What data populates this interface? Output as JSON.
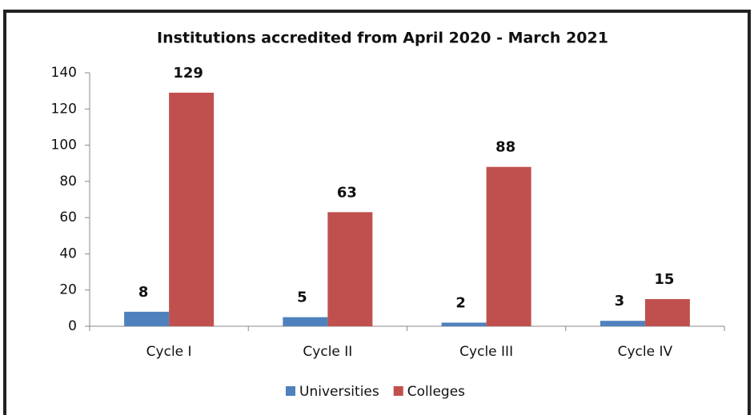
{
  "chart_data": {
    "type": "bar",
    "title": "Institutions accredited from April 2020 - March 2021",
    "categories": [
      "Cycle I",
      "Cycle II",
      "Cycle III",
      "Cycle IV"
    ],
    "series": [
      {
        "name": "Universities",
        "color": "#4f81bd",
        "values": [
          8,
          5,
          2,
          3
        ]
      },
      {
        "name": "Colleges",
        "color": "#c0504d",
        "values": [
          129,
          63,
          88,
          15
        ]
      }
    ],
    "ylim": [
      0,
      140
    ],
    "yticks": [
      0,
      20,
      40,
      60,
      80,
      100,
      120,
      140
    ],
    "grid": false,
    "legend": "bottom"
  }
}
